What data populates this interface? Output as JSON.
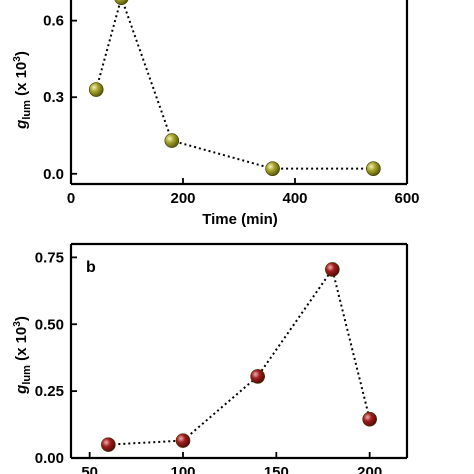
{
  "colors": {
    "panel_a_marker": "#8c8a1c",
    "panel_b_marker": "#8a1a1a"
  },
  "chart_data": [
    {
      "type": "scatter",
      "panel_label": "",
      "title": "",
      "xlabel": "Time (min)",
      "ylabel_main": "g",
      "ylabel_sub": "lum",
      "ylabel_tail": " (x 10",
      "ylabel_sup": "3",
      "ylabel_end": ")",
      "xlim": [
        0,
        600
      ],
      "ylim": [
        -0.04,
        0.72
      ],
      "xticks": [
        0,
        200,
        400,
        600
      ],
      "xtick_labels": [
        "0",
        "200",
        "400",
        "600"
      ],
      "yticks": [
        0.0,
        0.3,
        0.6
      ],
      "ytick_labels": [
        "0.0",
        "0.3",
        "0.6"
      ],
      "line_style": "dotted",
      "grid": false,
      "series": [
        {
          "x": [
            45,
            90,
            180,
            360,
            540
          ],
          "y": [
            0.33,
            0.69,
            0.13,
            0.02,
            0.02
          ]
        }
      ]
    },
    {
      "type": "scatter",
      "panel_label": "b",
      "title": "",
      "xlabel": "",
      "ylabel_main": "g",
      "ylabel_sub": "lum",
      "ylabel_tail": " (x 10",
      "ylabel_sup": "3",
      "ylabel_end": ")",
      "xlim": [
        40,
        220
      ],
      "ylim": [
        0.0,
        0.8
      ],
      "xticks": [
        50,
        100,
        150,
        200
      ],
      "xtick_labels": [
        "50",
        "100",
        "150",
        "200"
      ],
      "yticks": [
        0.0,
        0.25,
        0.5,
        0.75
      ],
      "ytick_labels": [
        "0.00",
        "0.25",
        "0.50",
        "0.75"
      ],
      "line_style": "dotted",
      "grid": false,
      "series": [
        {
          "x": [
            60,
            100,
            140,
            180,
            200
          ],
          "y": [
            0.05,
            0.065,
            0.305,
            0.705,
            0.145
          ]
        }
      ]
    }
  ]
}
